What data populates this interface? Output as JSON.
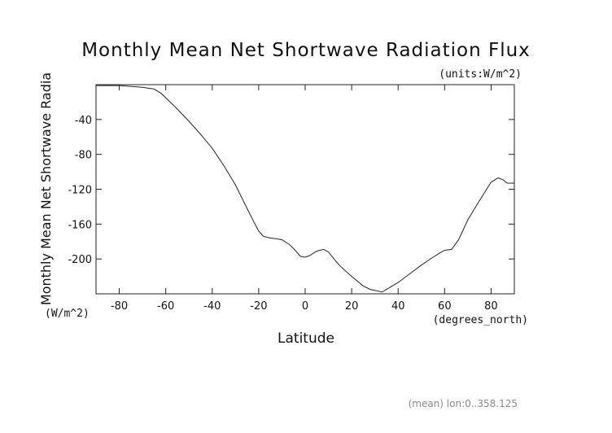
{
  "chart_data": {
    "type": "line",
    "title": "Monthly Mean Net Shortwave Radiation Flux",
    "units_label": "(units:W/m^2)",
    "xlabel": "Latitude",
    "xunits": "(degrees_north)",
    "ylabel": "Monthly Mean Net Shortwave Radia",
    "yunits": "(W/m^2)",
    "footer": "(mean) lon:0..358.125",
    "xlim": [
      -90,
      90
    ],
    "ylim": [
      -240,
      0
    ],
    "xticks": [
      -80,
      -60,
      -40,
      -20,
      0,
      20,
      40,
      60,
      80
    ],
    "yticks": [
      -40,
      -80,
      -120,
      -160,
      -200
    ],
    "grid": false,
    "series": [
      {
        "x": [
          -90,
          -85,
          -80,
          -75,
          -70,
          -65,
          -62,
          -60,
          -55,
          -50,
          -45,
          -40,
          -35,
          -30,
          -25,
          -22,
          -20,
          -18,
          -15,
          -12,
          -10,
          -7,
          -5,
          -2,
          0,
          2,
          5,
          8,
          10,
          13,
          15,
          20,
          25,
          28,
          30,
          33,
          35,
          40,
          45,
          50,
          55,
          58,
          60,
          63,
          66,
          70,
          75,
          80,
          83,
          85,
          87,
          90
        ],
        "y": [
          -1,
          -1,
          -1,
          -2,
          -3,
          -5,
          -10,
          -15,
          -28,
          -42,
          -57,
          -73,
          -93,
          -115,
          -142,
          -158,
          -168,
          -174,
          -176,
          -177,
          -178,
          -183,
          -188,
          -197,
          -198,
          -196,
          -191,
          -189,
          -192,
          -202,
          -208,
          -220,
          -231,
          -235,
          -236,
          -238,
          -235,
          -227,
          -217,
          -207,
          -198,
          -193,
          -190,
          -189,
          -178,
          -155,
          -133,
          -112,
          -107,
          -109,
          -113,
          -113
        ]
      }
    ]
  }
}
